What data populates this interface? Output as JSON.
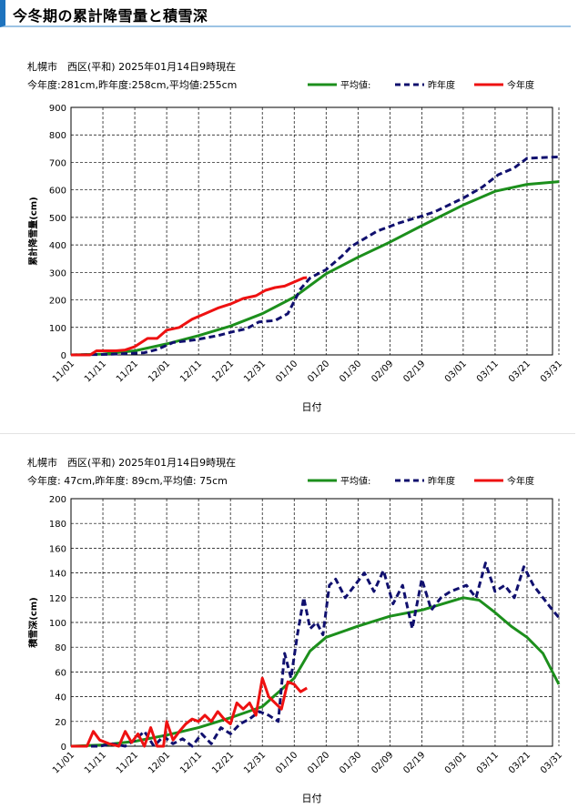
{
  "page": {
    "title": "今冬期の累計降雪量と積雪深"
  },
  "chart_data": [
    {
      "type": "line",
      "location": "札幌市　西区(平和)",
      "timestamp": "2025年01月14日9時現在",
      "summary": "今年度:281cm,昨年度:258cm,平均値:255cm",
      "xlabel": "日付",
      "ylabel": "累計降雪量(cm)",
      "ylim": [
        0,
        900
      ],
      "yticks": [
        0,
        100,
        200,
        300,
        400,
        500,
        600,
        700,
        800,
        900
      ],
      "xlim": [
        "11/01",
        "04/01"
      ],
      "xticks": [
        "11/01",
        "11/11",
        "11/21",
        "12/01",
        "12/11",
        "12/21",
        "12/31",
        "01/10",
        "01/20",
        "01/30",
        "02/09",
        "02/19",
        "03/01",
        "03/11",
        "03/21",
        "03/31"
      ],
      "grid": true,
      "legend_position": "top-right",
      "series": [
        {
          "name": "平均値",
          "color": "#1c8f1c",
          "style": "solid",
          "x": [
            "11/01",
            "11/11",
            "11/21",
            "12/01",
            "12/11",
            "12/21",
            "12/31",
            "01/10",
            "01/20",
            "01/30",
            "02/09",
            "02/19",
            "03/01",
            "03/11",
            "03/21",
            "03/31"
          ],
          "values": [
            0,
            3,
            15,
            40,
            70,
            105,
            150,
            210,
            295,
            355,
            410,
            470,
            545,
            595,
            620,
            630
          ]
        },
        {
          "name": "昨年度",
          "color": "#10106e",
          "style": "dashed",
          "x": [
            "11/01",
            "11/13",
            "11/24",
            "11/28",
            "12/03",
            "12/10",
            "12/17",
            "12/22",
            "12/26",
            "12/30",
            "01/04",
            "01/08",
            "01/12",
            "01/15",
            "01/20",
            "01/25",
            "01/28",
            "02/05",
            "02/12",
            "02/19",
            "02/23",
            "03/01",
            "03/07",
            "03/12",
            "03/17",
            "03/21",
            "03/31"
          ],
          "values": [
            0,
            2,
            8,
            20,
            45,
            55,
            70,
            85,
            95,
            120,
            125,
            150,
            240,
            280,
            310,
            360,
            395,
            450,
            480,
            505,
            520,
            570,
            610,
            655,
            680,
            715,
            720
          ]
        },
        {
          "name": "今年度",
          "color": "#ee1111",
          "style": "solid",
          "x": [
            "11/01",
            "11/07",
            "11/09",
            "11/12",
            "11/15",
            "11/18",
            "11/21",
            "11/23",
            "11/25",
            "11/28",
            "12/01",
            "12/05",
            "12/09",
            "12/13",
            "12/17",
            "12/21",
            "12/25",
            "12/29",
            "01/01",
            "01/04",
            "01/07",
            "01/10",
            "01/13",
            "01/14"
          ],
          "values": [
            0,
            0,
            15,
            15,
            15,
            18,
            30,
            45,
            60,
            60,
            90,
            100,
            130,
            150,
            170,
            185,
            205,
            215,
            235,
            245,
            250,
            265,
            280,
            281
          ]
        }
      ]
    },
    {
      "type": "line",
      "location": "札幌市　西区(平和)",
      "timestamp": "2025年01月14日9時現在",
      "summary": "今年度: 47cm,昨年度: 89cm,平均値: 75cm",
      "xlabel": "日付",
      "ylabel": "積雪深(cm)",
      "ylim": [
        0,
        200
      ],
      "yticks": [
        0,
        20,
        40,
        60,
        80,
        100,
        120,
        140,
        160,
        180,
        200
      ],
      "xlim": [
        "11/01",
        "04/01"
      ],
      "xticks": [
        "11/01",
        "11/11",
        "11/21",
        "12/01",
        "12/11",
        "12/21",
        "12/31",
        "01/10",
        "01/20",
        "01/30",
        "02/09",
        "02/19",
        "03/01",
        "03/11",
        "03/21",
        "03/31"
      ],
      "grid": true,
      "legend_position": "top-right",
      "series": [
        {
          "name": "平均値",
          "color": "#1c8f1c",
          "style": "solid",
          "x": [
            "11/01",
            "11/11",
            "11/21",
            "12/01",
            "12/11",
            "12/21",
            "12/31",
            "01/10",
            "01/15",
            "01/20",
            "01/30",
            "02/09",
            "02/19",
            "03/01",
            "03/06",
            "03/11",
            "03/16",
            "03/21",
            "03/26",
            "03/31"
          ],
          "values": [
            0,
            1,
            4,
            9,
            15,
            23,
            32,
            55,
            77,
            88,
            97,
            105,
            110,
            120,
            118,
            108,
            97,
            88,
            75,
            50
          ]
        },
        {
          "name": "昨年度",
          "color": "#10106e",
          "style": "dashed",
          "x": [
            "11/01",
            "11/10",
            "11/14",
            "11/18",
            "11/21",
            "11/24",
            "11/27",
            "11/30",
            "12/03",
            "12/06",
            "12/09",
            "12/12",
            "12/15",
            "12/18",
            "12/21",
            "12/24",
            "12/27",
            "12/30",
            "01/02",
            "01/05",
            "01/07",
            "01/09",
            "01/11",
            "01/13",
            "01/15",
            "01/17",
            "01/19",
            "01/21",
            "01/23",
            "01/26",
            "01/29",
            "02/01",
            "02/04",
            "02/07",
            "02/10",
            "02/13",
            "02/16",
            "02/19",
            "02/22",
            "02/25",
            "02/28",
            "03/02",
            "03/05",
            "03/08",
            "03/11",
            "03/14",
            "03/17",
            "03/20",
            "03/23",
            "03/26",
            "03/29",
            "03/31"
          ],
          "values": [
            0,
            0,
            2,
            0,
            5,
            12,
            0,
            8,
            2,
            6,
            0,
            10,
            2,
            15,
            10,
            18,
            22,
            28,
            25,
            20,
            75,
            55,
            90,
            120,
            95,
            100,
            90,
            130,
            135,
            120,
            130,
            140,
            125,
            142,
            115,
            130,
            95,
            135,
            110,
            120,
            125,
            130,
            120,
            148,
            125,
            130,
            120,
            145,
            130,
            120,
            110,
            104
          ]
        },
        {
          "name": "今年度",
          "color": "#ee1111",
          "style": "solid",
          "x": [
            "11/01",
            "11/06",
            "11/08",
            "11/10",
            "11/13",
            "11/16",
            "11/18",
            "11/20",
            "11/22",
            "11/24",
            "11/26",
            "11/28",
            "11/30",
            "12/01",
            "12/03",
            "12/05",
            "12/07",
            "12/09",
            "12/11",
            "12/13",
            "12/15",
            "12/17",
            "12/19",
            "12/21",
            "12/23",
            "12/25",
            "12/27",
            "12/29",
            "12/31",
            "01/02",
            "01/04",
            "01/06",
            "01/08",
            "01/10",
            "01/12",
            "01/14"
          ],
          "values": [
            0,
            0,
            12,
            5,
            2,
            0,
            12,
            3,
            10,
            0,
            15,
            0,
            0,
            20,
            5,
            12,
            18,
            22,
            20,
            25,
            20,
            28,
            22,
            18,
            35,
            30,
            35,
            25,
            55,
            40,
            35,
            30,
            52,
            50,
            44,
            47
          ]
        }
      ]
    }
  ]
}
